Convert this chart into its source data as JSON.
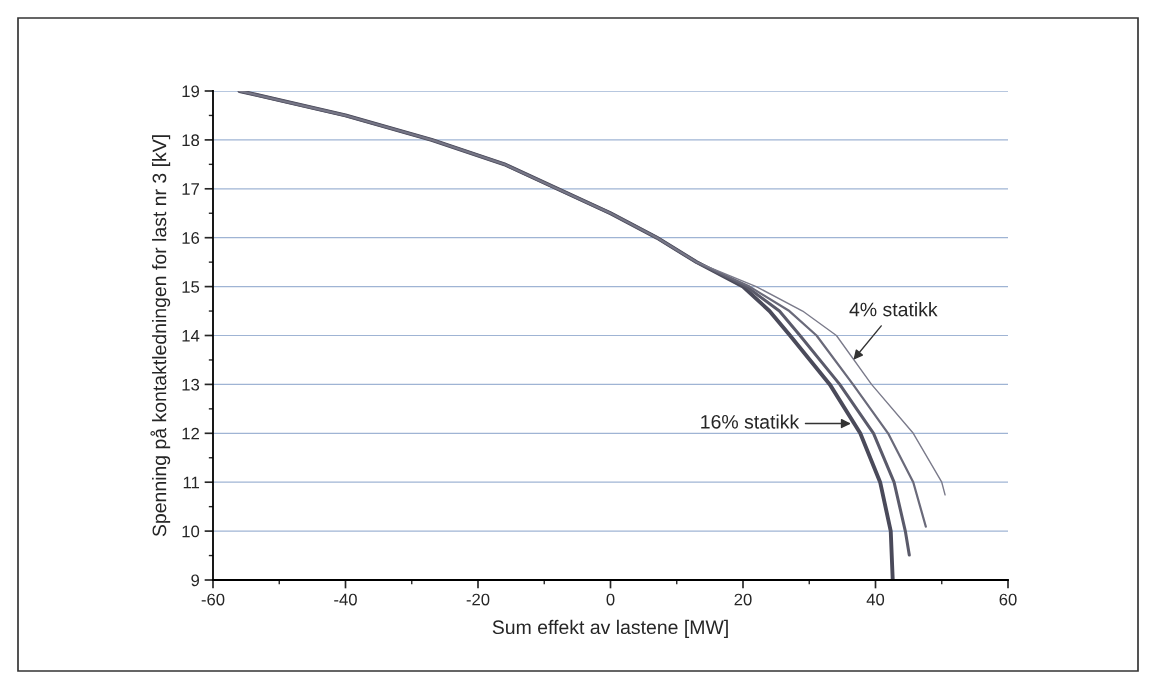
{
  "chart_data": {
    "type": "line",
    "xlabel": "Sum effekt av lastene [MW]",
    "ylabel": "Spenning på kontaktledningen for last nr 3 [kV]",
    "xlim": [
      -60,
      60
    ],
    "xticks": [
      -60,
      -40,
      -20,
      0,
      20,
      40,
      60
    ],
    "ylim": [
      9,
      19
    ],
    "yticks": [
      9,
      10,
      11,
      12,
      13,
      14,
      15,
      16,
      17,
      18,
      19
    ],
    "grid": "y",
    "marker": "none",
    "line_style": "solid",
    "series": [
      {
        "color": "#4a4a5a",
        "x": [
          -56,
          -40,
          -27,
          -16,
          -8,
          0,
          7,
          13,
          20,
          24,
          27.1,
          33.1,
          37.7,
          40.7,
          42.3,
          42.6
        ],
        "values": [
          19,
          18.5,
          18,
          17.5,
          17,
          16.5,
          16,
          15.5,
          15,
          14.5,
          14,
          13,
          12,
          11,
          10,
          9
        ]
      },
      {
        "color": "#5a5a6a",
        "x": [
          -56,
          -40,
          -27,
          -16,
          -8,
          0,
          7,
          13,
          20.5,
          25.5,
          28.6,
          34.6,
          39.7,
          42.8,
          44.5,
          45.1
        ],
        "values": [
          19,
          18.5,
          18,
          17.5,
          17,
          16.5,
          16,
          15.5,
          15,
          14.5,
          14,
          13,
          12,
          11,
          10,
          9.51
        ]
      },
      {
        "color": "#6a6a7a",
        "x": [
          -56,
          -40,
          -27,
          -16,
          -8,
          0,
          7,
          13,
          21,
          27,
          31.1,
          36.6,
          41.9,
          45.7,
          47.6
        ],
        "values": [
          19,
          18.5,
          18,
          17.5,
          17,
          16.5,
          16,
          15.5,
          15,
          14.5,
          14,
          13,
          12,
          11,
          10.09
        ]
      },
      {
        "color": "#7a7a8a",
        "x": [
          -56,
          -40,
          -27,
          -16,
          -8,
          0,
          7,
          13,
          22,
          29,
          34.1,
          39.4,
          45.7,
          50,
          50.5
        ],
        "values": [
          19,
          18.5,
          18,
          17.5,
          17,
          16.5,
          16,
          15.5,
          15,
          14.5,
          14,
          13,
          12,
          11,
          10.74
        ]
      }
    ],
    "annotations": [
      {
        "text": "4% statikk",
        "x": 36.4,
        "y": 13.46
      },
      {
        "text": "16% statikk",
        "x": 36.7,
        "y": 12.2
      }
    ]
  }
}
